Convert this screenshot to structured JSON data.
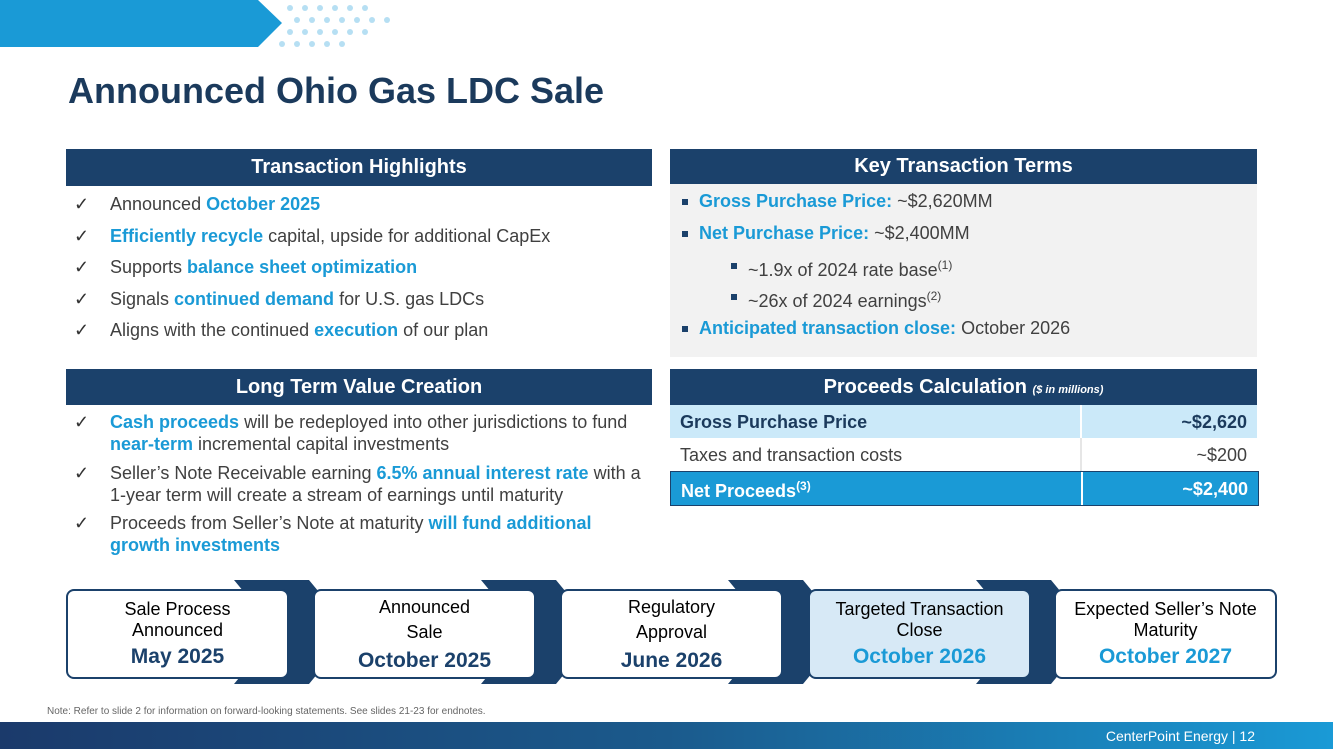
{
  "title": "Announced Ohio Gas LDC Sale",
  "highlights": {
    "heading": "Transaction Highlights",
    "items": [
      [
        {
          "text": "Announced "
        },
        {
          "text": "October 2025",
          "bold": true
        }
      ],
      [
        {
          "text": "Efficiently recycle",
          "bold": true
        },
        {
          "text": " capital, upside for additional CapEx"
        }
      ],
      [
        {
          "text": "Supports "
        },
        {
          "text": "balance sheet optimization",
          "bold": true
        }
      ],
      [
        {
          "text": "Signals "
        },
        {
          "text": "continued demand",
          "bold": true
        },
        {
          "text": " for U.S. gas LDCs"
        }
      ],
      [
        {
          "text": "Aligns with the continued "
        },
        {
          "text": "execution",
          "bold": true
        },
        {
          "text": " of our plan"
        }
      ]
    ]
  },
  "terms": {
    "heading": "Key Transaction Terms",
    "items": [
      {
        "level": 1,
        "label": "Gross Purchase Price:",
        "value": " ~$2,620MM"
      },
      {
        "level": 1,
        "label": "Net Purchase Price:",
        "value": " ~$2,400MM"
      },
      {
        "level": 2,
        "value": "~1.9x of 2024 rate base",
        "note": "(1)"
      },
      {
        "level": 2,
        "value": "~26x of 2024 earnings",
        "note": "(2)"
      },
      {
        "level": 1,
        "label": "Anticipated transaction close:",
        "value": " October 2026"
      }
    ]
  },
  "value_creation": {
    "heading": "Long Term Value Creation",
    "items": [
      [
        {
          "text": "Cash proceeds",
          "bold": true
        },
        {
          "text": " will be redeployed into other jurisdictions to fund "
        },
        {
          "text": "near-term",
          "bold": true
        },
        {
          "text": " incremental capital investments"
        }
      ],
      [
        {
          "text": "Seller’s Note Receivable earning "
        },
        {
          "text": "6.5% annual interest rate",
          "bold": true
        },
        {
          "text": " with a 1-year term will create a stream of earnings until maturity"
        }
      ],
      [
        {
          "text": "Proceeds from Seller’s Note at maturity "
        },
        {
          "text": "will fund additional growth investments",
          "bold": true
        }
      ]
    ]
  },
  "proceeds": {
    "heading": "Proceeds Calculation",
    "subheading": "($ in millions)",
    "rows": [
      {
        "label": "Gross Purchase Price",
        "value": "~$2,620",
        "style": "highlight"
      },
      {
        "label": "Taxes and transaction costs",
        "value": "~$200",
        "style": "plain"
      },
      {
        "label": "Net Proceeds",
        "note": "(3)",
        "value": "~$2,400",
        "style": "total"
      }
    ]
  },
  "timeline": [
    {
      "lines": [
        "Sale Process",
        "Announced"
      ],
      "date": "May 2025",
      "state": "done"
    },
    {
      "lines": [
        "Announced",
        "Sale"
      ],
      "date": "October 2025",
      "state": "done"
    },
    {
      "lines": [
        "Regulatory",
        "Approval"
      ],
      "date": "June 2026",
      "state": "done"
    },
    {
      "lines": [
        "Targeted Transaction",
        "Close"
      ],
      "date": "October 2026",
      "state": "future-current"
    },
    {
      "lines": [
        "Expected Seller’s Note",
        "Maturity"
      ],
      "date": "October 2027",
      "state": "future"
    }
  ],
  "footnote": "Note: Refer to slide 2 for information on forward-looking statements. See slides 21-23 for endnotes.",
  "footer": "CenterPoint Energy | 12"
}
